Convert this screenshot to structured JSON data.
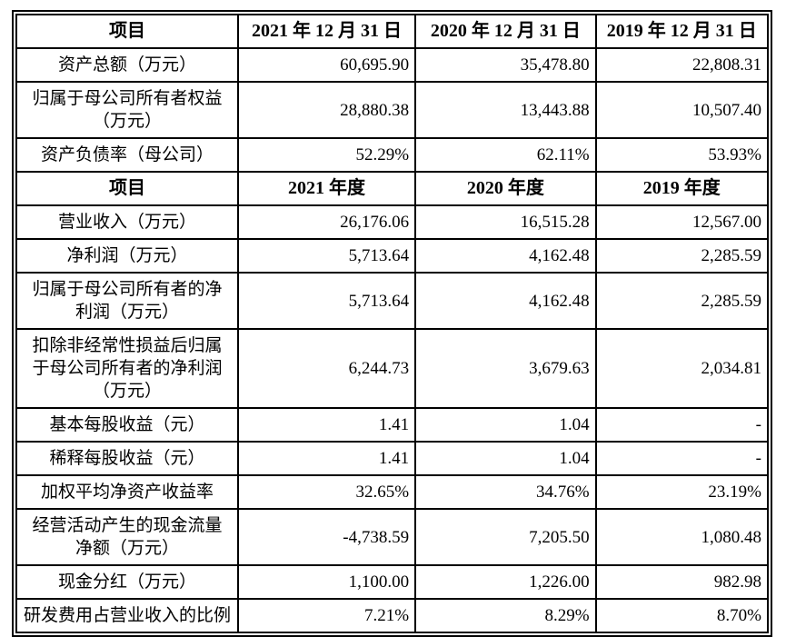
{
  "colors": {
    "border": "#000000",
    "background": "#ffffff",
    "text": "#000000"
  },
  "sections": [
    {
      "header": [
        "项目",
        "2021 年 12 月 31 日",
        "2020 年 12 月 31 日",
        "2019 年 12 月 31 日"
      ],
      "rows": [
        {
          "label": "资产总额（万元）",
          "values": [
            "60,695.90",
            "35,478.80",
            "22,808.31"
          ]
        },
        {
          "label": "归属于母公司所有者权益\n（万元）",
          "values": [
            "28,880.38",
            "13,443.88",
            "10,507.40"
          ]
        },
        {
          "label": "资产负债率（母公司）",
          "values": [
            "52.29%",
            "62.11%",
            "53.93%"
          ]
        }
      ]
    },
    {
      "header": [
        "项目",
        "2021 年度",
        "2020 年度",
        "2019 年度"
      ],
      "rows": [
        {
          "label": "营业收入（万元）",
          "values": [
            "26,176.06",
            "16,515.28",
            "12,567.00"
          ]
        },
        {
          "label": "净利润（万元）",
          "values": [
            "5,713.64",
            "4,162.48",
            "2,285.59"
          ]
        },
        {
          "label": "归属于母公司所有者的净\n利润（万元）",
          "values": [
            "5,713.64",
            "4,162.48",
            "2,285.59"
          ]
        },
        {
          "label": "扣除非经常性损益后归属\n于母公司所有者的净利润\n（万元）",
          "values": [
            "6,244.73",
            "3,679.63",
            "2,034.81"
          ]
        },
        {
          "label": "基本每股收益（元）",
          "values": [
            "1.41",
            "1.04",
            "-"
          ]
        },
        {
          "label": "稀释每股收益（元）",
          "values": [
            "1.41",
            "1.04",
            "-"
          ]
        },
        {
          "label": "加权平均净资产收益率",
          "values": [
            "32.65%",
            "34.76%",
            "23.19%"
          ]
        },
        {
          "label": "经营活动产生的现金流量\n净额（万元）",
          "values": [
            "-4,738.59",
            "7,205.50",
            "1,080.48"
          ]
        },
        {
          "label": "现金分红（万元）",
          "values": [
            "1,100.00",
            "1,226.00",
            "982.98"
          ]
        },
        {
          "label": "研发费用占营业收入的比例",
          "values": [
            "7.21%",
            "8.29%",
            "8.70%"
          ]
        }
      ]
    }
  ]
}
